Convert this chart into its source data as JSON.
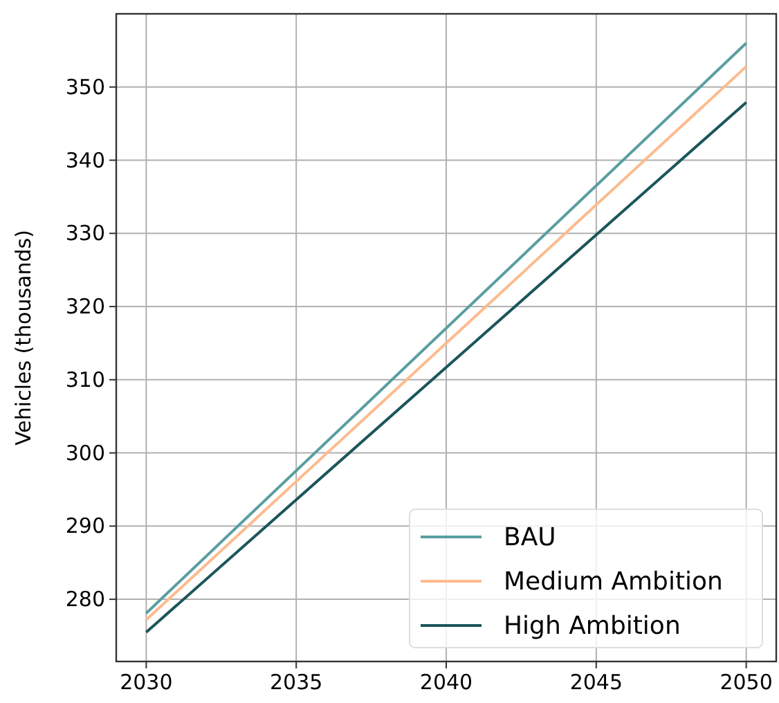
{
  "chart_data": {
    "type": "line",
    "ylabel": "Vehicles (thousands)",
    "x": [
      2030,
      2050
    ],
    "series": [
      {
        "name": "BAU",
        "color": "#5a9ea0",
        "values": [
          278.1,
          356
        ]
      },
      {
        "name": "Medium Ambition",
        "color": "#fdbb8e",
        "values": [
          277.2,
          352.8
        ]
      },
      {
        "name": "High Ambition",
        "color": "#1b555b",
        "values": [
          275.5,
          347.9
        ]
      }
    ],
    "xlim": [
      2029,
      2051
    ],
    "ylim": [
      271.5,
      360
    ],
    "xticks": [
      2030,
      2035,
      2040,
      2045,
      2050
    ],
    "yticks": [
      280,
      290,
      300,
      310,
      320,
      330,
      340,
      350
    ],
    "grid": true,
    "legend": "bottom right",
    "marker": "none",
    "line_style": "solid"
  }
}
